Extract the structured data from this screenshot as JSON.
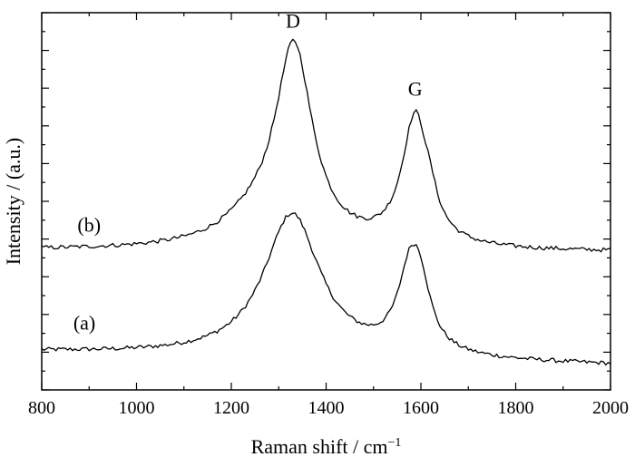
{
  "chart_data": {
    "type": "line",
    "xlabel": "Raman shift / cm",
    "xlabel_sup": "−1",
    "ylabel": "Intensity / (a.u.)",
    "xlim": [
      800,
      2000
    ],
    "ylim": [
      0,
      100
    ],
    "x_ticks": [
      "800",
      "1000",
      "1200",
      "1400",
      "1600",
      "1800",
      "2000"
    ],
    "y_tick_labels_shown": false,
    "grid": false,
    "x_step": 5,
    "series": [
      {
        "name": "(a)",
        "baseline": [
          10.0,
          6.5
        ],
        "peaks": [
          {
            "center": 1328,
            "width": 72,
            "height": 38
          },
          {
            "center": 1578,
            "width": 32,
            "height": 21
          },
          {
            "center": 1600,
            "width": 26,
            "height": 11
          }
        ]
      },
      {
        "name": "(b)",
        "baseline": [
          37.0,
          36.5
        ],
        "peaks": [
          {
            "center": 1332,
            "width": 48,
            "height": 52
          },
          {
            "center": 1250,
            "width": 90,
            "height": 6
          },
          {
            "center": 1588,
            "width": 34,
            "height": 34
          },
          {
            "center": 1620,
            "width": 18,
            "height": 4
          }
        ]
      }
    ],
    "annotations": [
      {
        "text": "D",
        "x": 1330,
        "y": 96
      },
      {
        "text": "G",
        "x": 1588,
        "y": 78
      },
      {
        "text": "(b)",
        "x": 900,
        "y": 42
      },
      {
        "text": "(a)",
        "x": 890,
        "y": 16
      }
    ]
  }
}
